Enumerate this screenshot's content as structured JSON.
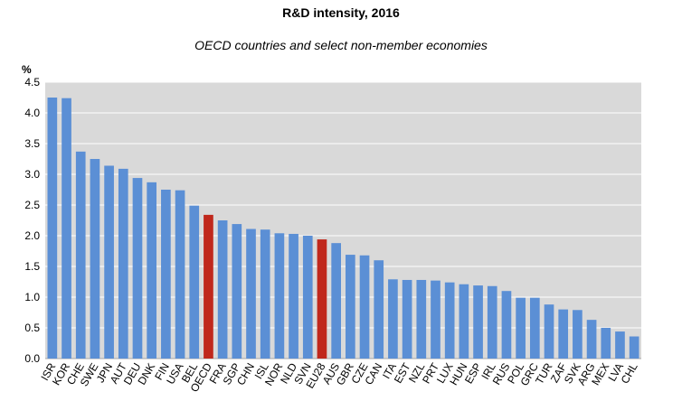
{
  "chart_data": {
    "type": "bar",
    "title": "R&D intensity, 2016",
    "subtitle": "OECD countries and select non-member economies",
    "ylabel": "%",
    "xlabel": "",
    "ylim": [
      0,
      4.5
    ],
    "yticks": [
      "0.0",
      "0.5",
      "1.0",
      "1.5",
      "2.0",
      "2.5",
      "3.0",
      "3.5",
      "4.0",
      "4.5"
    ],
    "grid": true,
    "legend": "none",
    "colors": {
      "default": "#5b8fd5",
      "highlight": "#c0281c",
      "plot_background": "#d9d9d9",
      "gridline": "#ffffff"
    },
    "categories": [
      "ISR",
      "KOR",
      "CHE",
      "SWE",
      "JPN",
      "AUT",
      "DEU",
      "DNK",
      "FIN",
      "USA",
      "BEL",
      "OECD",
      "FRA",
      "SGP",
      "CHN",
      "ISL",
      "NOR",
      "NLD",
      "SVN",
      "EU28",
      "AUS",
      "GBR",
      "CZE",
      "CAN",
      "ITA",
      "EST",
      "NZL",
      "PRT",
      "LUX",
      "HUN",
      "ESP",
      "IRL",
      "RUS",
      "POL",
      "GRC",
      "TUR",
      "ZAF",
      "SVK",
      "ARG",
      "MEX",
      "LVA",
      "CHL"
    ],
    "values": [
      4.25,
      4.24,
      3.37,
      3.25,
      3.14,
      3.09,
      2.94,
      2.87,
      2.75,
      2.74,
      2.49,
      2.34,
      2.25,
      2.19,
      2.11,
      2.1,
      2.04,
      2.03,
      2.0,
      1.94,
      1.88,
      1.69,
      1.68,
      1.6,
      1.29,
      1.28,
      1.28,
      1.27,
      1.24,
      1.21,
      1.19,
      1.18,
      1.1,
      0.99,
      0.99,
      0.88,
      0.8,
      0.79,
      0.63,
      0.5,
      0.44,
      0.36
    ],
    "highlighted": [
      "OECD",
      "EU28"
    ]
  }
}
